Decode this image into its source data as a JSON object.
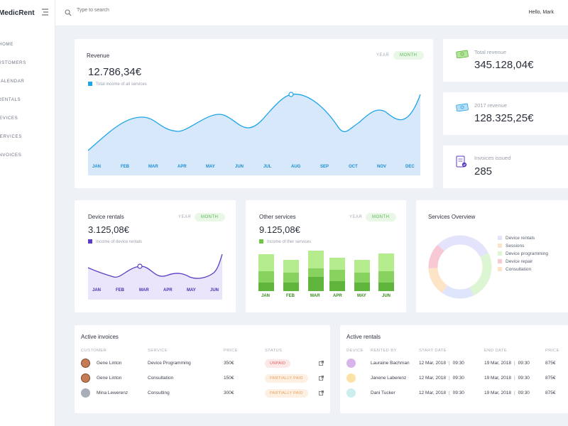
{
  "app": {
    "name": "MedicRent"
  },
  "sidebar": {
    "items": [
      "HOME",
      "CUSTOMERS",
      "CALENDAR",
      "RENTALS",
      "DEVICES",
      "SERVICES",
      "INVOICES"
    ]
  },
  "topbar": {
    "search_placeholder": "Type to search",
    "greeting": "Hello, Mark"
  },
  "revenue": {
    "title": "Revenue",
    "value": "12.786,34€",
    "legend": "Total income of all services",
    "tab_year": "YEAR",
    "tab_month": "MONTH",
    "months": [
      "JAN",
      "FEB",
      "MAR",
      "APR",
      "MAY",
      "JUN",
      "JUL",
      "AUG",
      "SEP",
      "OCT",
      "NOV",
      "DEC"
    ]
  },
  "stats": [
    {
      "label": "Total revenue",
      "value": "345.128,04€",
      "icon": "money-icon"
    },
    {
      "label": "2017 revenue",
      "value": "128.325,25€",
      "icon": "money-icon"
    },
    {
      "label": "Invoices issued",
      "value": "285",
      "icon": "invoice-icon"
    }
  ],
  "device_rentals": {
    "title": "Device rentals",
    "value": "3.125,08€",
    "legend": "Income of device rentals",
    "tab_year": "YEAR",
    "tab_month": "MONTH",
    "months": [
      "JAN",
      "FEB",
      "MAR",
      "APR",
      "MAY",
      "JUN"
    ]
  },
  "other_services": {
    "title": "Other services",
    "value": "9.125,08€",
    "legend": "Income of ther services",
    "tab_year": "YEAR",
    "tab_month": "MONTH",
    "months": [
      "JAN",
      "FEB",
      "MAR",
      "APR",
      "MAY",
      "JUN"
    ]
  },
  "services_overview": {
    "title": "Services Overview",
    "legend": [
      {
        "label": "Device rentals",
        "color": "#e3e4fb"
      },
      {
        "label": "Sessions",
        "color": "#fbe3c7"
      },
      {
        "label": "Device programming",
        "color": "#dcf5d3"
      },
      {
        "label": "Device repair",
        "color": "#f7c9d5"
      },
      {
        "label": "Consultation",
        "color": "#fde4c6"
      }
    ]
  },
  "active_invoices": {
    "title": "Active invoices",
    "columns": [
      "CUSTOMER",
      "SERVICE",
      "PRICE",
      "STATUS"
    ],
    "rows": [
      {
        "customer": "Gene Linton",
        "service": "Device Programming",
        "price": "350€",
        "status": "UNPAID"
      },
      {
        "customer": "Gene Linton",
        "service": "Consultation",
        "price": "150€",
        "status": "PARTIALLY PAID"
      },
      {
        "customer": "Mina Lewerenz",
        "service": "Consulting",
        "price": "300€",
        "status": "PARTIALLY PAID"
      }
    ]
  },
  "active_rentals": {
    "title": "Active rentals",
    "columns": [
      "DEVICE",
      "RENTED BY",
      "START DATE",
      "END DATE",
      "PRICE"
    ],
    "rows": [
      {
        "rented_by": "Lauraine Bachman",
        "start_date": "12 Mar, 2018",
        "start_time": "09:30",
        "end_date": "19 Mar, 2018",
        "end_time": "09:30",
        "price": "875€",
        "color": "#d9b3ec"
      },
      {
        "rented_by": "Janene Laberenz",
        "start_date": "12 Mar, 2018",
        "start_time": "09:30",
        "end_date": "19 Mar, 2018",
        "end_time": "09:30",
        "price": "875€",
        "color": "#fde2a8"
      },
      {
        "rented_by": "Dani Tucker",
        "start_date": "12 Mar, 2018",
        "start_time": "09:30",
        "end_date": "19 Mar, 2018",
        "end_time": "09:30",
        "price": "875€",
        "color": "#cdeeee"
      }
    ]
  },
  "colors": {
    "accent_blue": "#1ea4e9",
    "accent_purple": "#5b3cc4",
    "accent_green": "#6cc644"
  }
}
